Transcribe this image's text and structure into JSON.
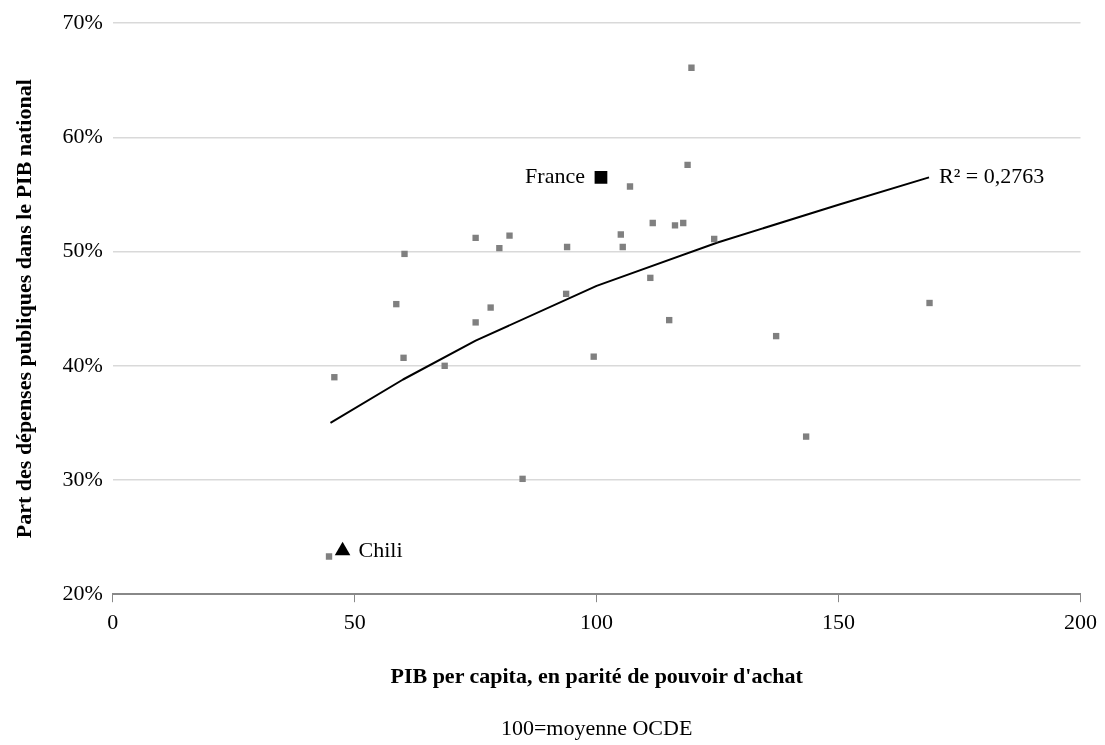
{
  "chart_data": {
    "type": "scatter",
    "xlabel": "PIB per capita, en parité de pouvoir d'achat",
    "ylabel": "Part des dépenses publiques dans le PIB national",
    "annotations": [
      "100=moyenne OCDE",
      {
        "text": "R² = 0,2763",
        "x": 168.7,
        "y": 56.5
      }
    ],
    "xlim": [
      0,
      200
    ],
    "xticks": [
      0,
      50,
      100,
      150,
      200
    ],
    "ylim": [
      20,
      70
    ],
    "yticks": [
      {
        "value": 20,
        "label": "20%"
      },
      {
        "value": 30,
        "label": "30%"
      },
      {
        "value": 40,
        "label": "40%"
      },
      {
        "value": 50,
        "label": "50%"
      },
      {
        "value": 60,
        "label": "60%"
      },
      {
        "value": 70,
        "label": "70%"
      }
    ],
    "grid": "y",
    "legend": false,
    "series": [
      {
        "type": "scatter",
        "color": "#808080",
        "marker": "square",
        "x": [
          45.8,
          60.3,
          58.6,
          60.1,
          68.6,
          75.0,
          75.0,
          78.1,
          79.9,
          82.0,
          93.9,
          93.7,
          99.4,
          106.9,
          105.0,
          105.4,
          111.6,
          111.1,
          115.0,
          116.2,
          117.9,
          118.8,
          119.6,
          124.3,
          168.8,
          137.1,
          143.3,
          84.7,
          44.7
        ],
        "values": [
          39.0,
          49.8,
          45.4,
          40.7,
          40.0,
          51.2,
          43.8,
          45.1,
          50.3,
          51.4,
          50.4,
          46.3,
          40.8,
          55.7,
          51.5,
          50.4,
          52.5,
          47.7,
          44.0,
          52.3,
          52.5,
          57.6,
          66.1,
          51.1,
          45.5,
          42.6,
          33.8,
          30.1,
          23.3
        ]
      },
      {
        "type": "scatter",
        "name": "France",
        "color": "#000000",
        "marker": "square",
        "x": [
          100.9
        ],
        "values": [
          56.5
        ]
      },
      {
        "type": "scatter",
        "name": "Chili",
        "color": "#000000",
        "marker": "triangle",
        "x": [
          47.5
        ],
        "values": [
          23.8
        ]
      },
      {
        "type": "line",
        "color": "#000000",
        "marker": "none",
        "x": [
          45,
          60,
          75,
          100,
          125,
          150,
          168.7
        ],
        "values": [
          35.0,
          38.8,
          42.2,
          47.0,
          50.8,
          54.1,
          56.5
        ]
      }
    ]
  }
}
